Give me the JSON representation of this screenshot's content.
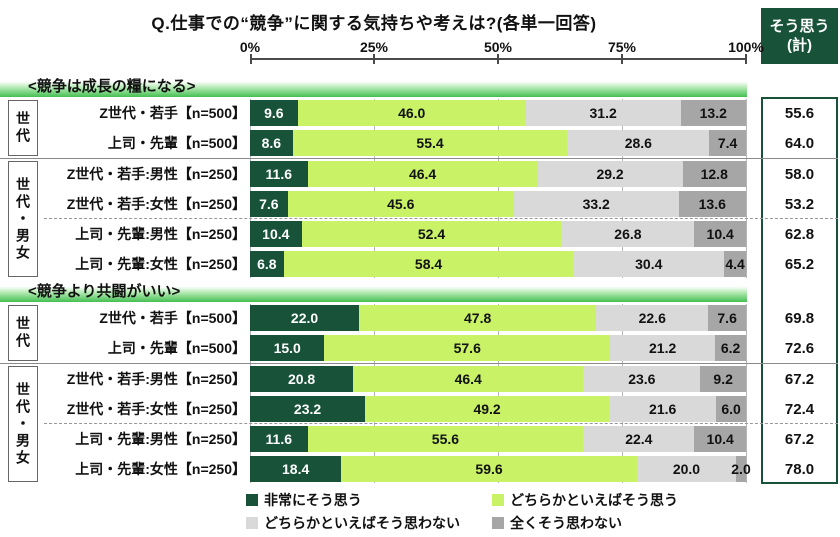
{
  "title": "Q.仕事での“競争”に関する気持ちや考えは?(各単一回答)",
  "totals_header": {
    "line1": "そう思う",
    "line2": "(計)"
  },
  "legend": {
    "items": [
      {
        "label": "非常にそう思う",
        "color": "#175239"
      },
      {
        "label": "どちらかといえばそう思う",
        "color": "#c9f266"
      },
      {
        "label": "どちらかといえばそう思わない",
        "color": "#d9d9d9"
      },
      {
        "label": "全くそう思わない",
        "color": "#a6a6a6"
      }
    ]
  },
  "colors": {
    "accent_dark_green": "#175239",
    "light_green": "#c9f266",
    "light_gray": "#d9d9d9",
    "dark_gray": "#a6a6a6",
    "band_green": "#44bf52"
  },
  "chart_data": {
    "type": "bar",
    "subtype": "horizontal-stacked-100pct",
    "xlim": [
      0,
      100
    ],
    "x_ticks": [
      "0%",
      "25%",
      "50%",
      "75%",
      "100%"
    ],
    "series_labels": [
      "非常にそう思う",
      "どちらかといえばそう思う",
      "どちらかといえばそう思わない",
      "全くそう思わない"
    ],
    "series_colors": [
      "#175239",
      "#c9f266",
      "#d9d9d9",
      "#a6a6a6"
    ],
    "legend_position": "bottom",
    "sections": [
      {
        "heading": "<競争は成長の糧になる>",
        "groups": [
          {
            "label": "世代",
            "rows": [
              {
                "label": "Z世代・若手【n=500】",
                "values": [
                  9.6,
                  46.0,
                  31.2,
                  13.2
                ],
                "total": 55.6
              },
              {
                "label": "上司・先輩【n=500】",
                "values": [
                  8.6,
                  55.4,
                  28.6,
                  7.4
                ],
                "total": 64.0
              }
            ]
          },
          {
            "label": "世代・男女",
            "rows": [
              {
                "label": "Z世代・若手:男性【n=250】",
                "values": [
                  11.6,
                  46.4,
                  29.2,
                  12.8
                ],
                "total": 58.0
              },
              {
                "label": "Z世代・若手:女性【n=250】",
                "values": [
                  7.6,
                  45.6,
                  33.2,
                  13.6
                ],
                "total": 53.2
              },
              {
                "label": "上司・先輩:男性【n=250】",
                "values": [
                  10.4,
                  52.4,
                  26.8,
                  10.4
                ],
                "total": 62.8
              },
              {
                "label": "上司・先輩:女性【n=250】",
                "values": [
                  6.8,
                  58.4,
                  30.4,
                  4.4
                ],
                "total": 65.2
              }
            ]
          }
        ]
      },
      {
        "heading": "<競争より共闘がいい>",
        "groups": [
          {
            "label": "世代",
            "rows": [
              {
                "label": "Z世代・若手【n=500】",
                "values": [
                  22.0,
                  47.8,
                  22.6,
                  7.6
                ],
                "total": 69.8
              },
              {
                "label": "上司・先輩【n=500】",
                "values": [
                  15.0,
                  57.6,
                  21.2,
                  6.2
                ],
                "total": 72.6
              }
            ]
          },
          {
            "label": "世代・男女",
            "rows": [
              {
                "label": "Z世代・若手:男性【n=250】",
                "values": [
                  20.8,
                  46.4,
                  23.6,
                  9.2
                ],
                "total": 67.2
              },
              {
                "label": "Z世代・若手:女性【n=250】",
                "values": [
                  23.2,
                  49.2,
                  21.6,
                  6.0
                ],
                "total": 72.4
              },
              {
                "label": "上司・先輩:男性【n=250】",
                "values": [
                  11.6,
                  55.6,
                  22.4,
                  10.4
                ],
                "total": 67.2
              },
              {
                "label": "上司・先輩:女性【n=250】",
                "values": [
                  18.4,
                  59.6,
                  20.0,
                  2.0
                ],
                "total": 78.0
              }
            ]
          }
        ]
      }
    ]
  }
}
